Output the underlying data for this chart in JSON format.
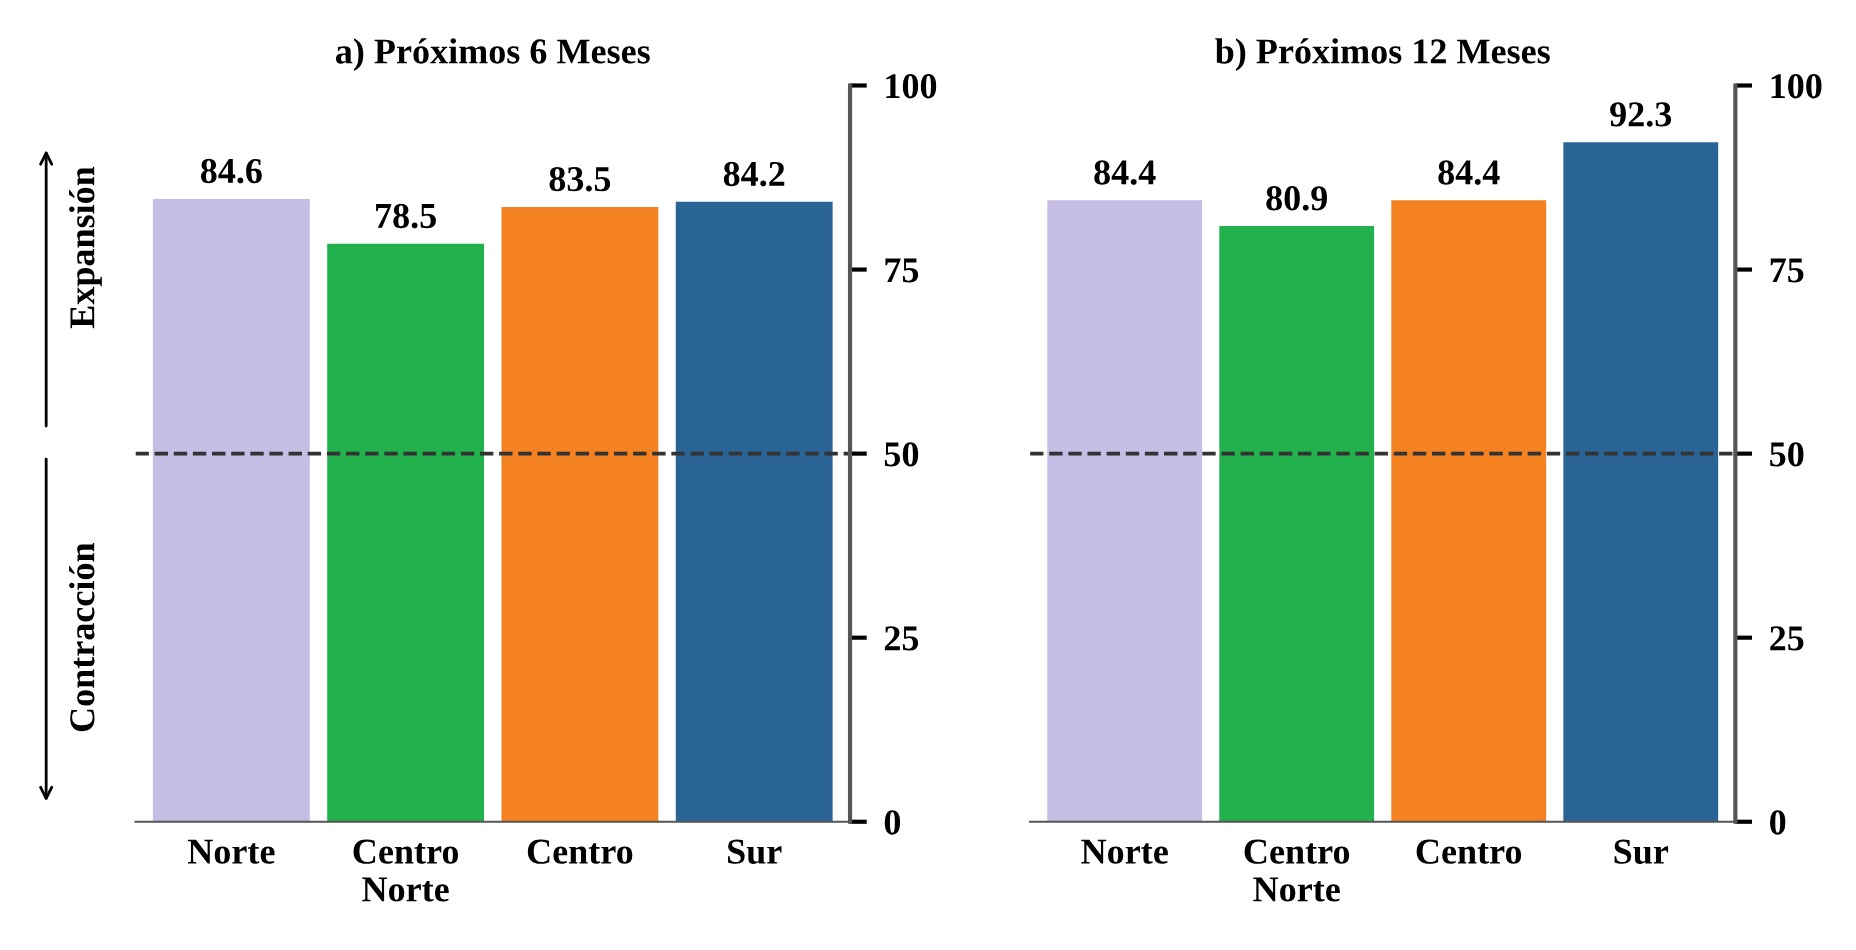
{
  "chart_data": [
    {
      "type": "bar",
      "title": "a) Próximos 6 Meses",
      "categories": [
        "Norte",
        "Centro\nNorte",
        "Centro",
        "Sur"
      ],
      "values": [
        84.6,
        78.5,
        83.5,
        84.2
      ],
      "colors": [
        "#c5bde3",
        "#22b14c",
        "#f58220",
        "#2a6496"
      ],
      "ylim": [
        0,
        100
      ],
      "yticks": [
        0,
        25,
        50,
        75,
        100
      ],
      "data_labels": true,
      "grid": false,
      "legend": false,
      "ref_lines": [
        {
          "axis": "y",
          "value": 50,
          "line_style": "dashed",
          "color": "#333333"
        }
      ],
      "annotations": [
        "Expansión",
        "Contracción"
      ]
    },
    {
      "type": "bar",
      "title": "b) Próximos 12 Meses",
      "categories": [
        "Norte",
        "Centro\nNorte",
        "Centro",
        "Sur"
      ],
      "values": [
        84.4,
        80.9,
        84.4,
        92.3
      ],
      "colors": [
        "#c5bde3",
        "#22b14c",
        "#f58220",
        "#2a6496"
      ],
      "ylim": [
        0,
        100
      ],
      "yticks": [
        0,
        25,
        50,
        75,
        100
      ],
      "data_labels": true,
      "grid": false,
      "legend": false,
      "ref_lines": [
        {
          "axis": "y",
          "value": 50,
          "line_style": "dashed",
          "color": "#333333"
        }
      ]
    }
  ]
}
